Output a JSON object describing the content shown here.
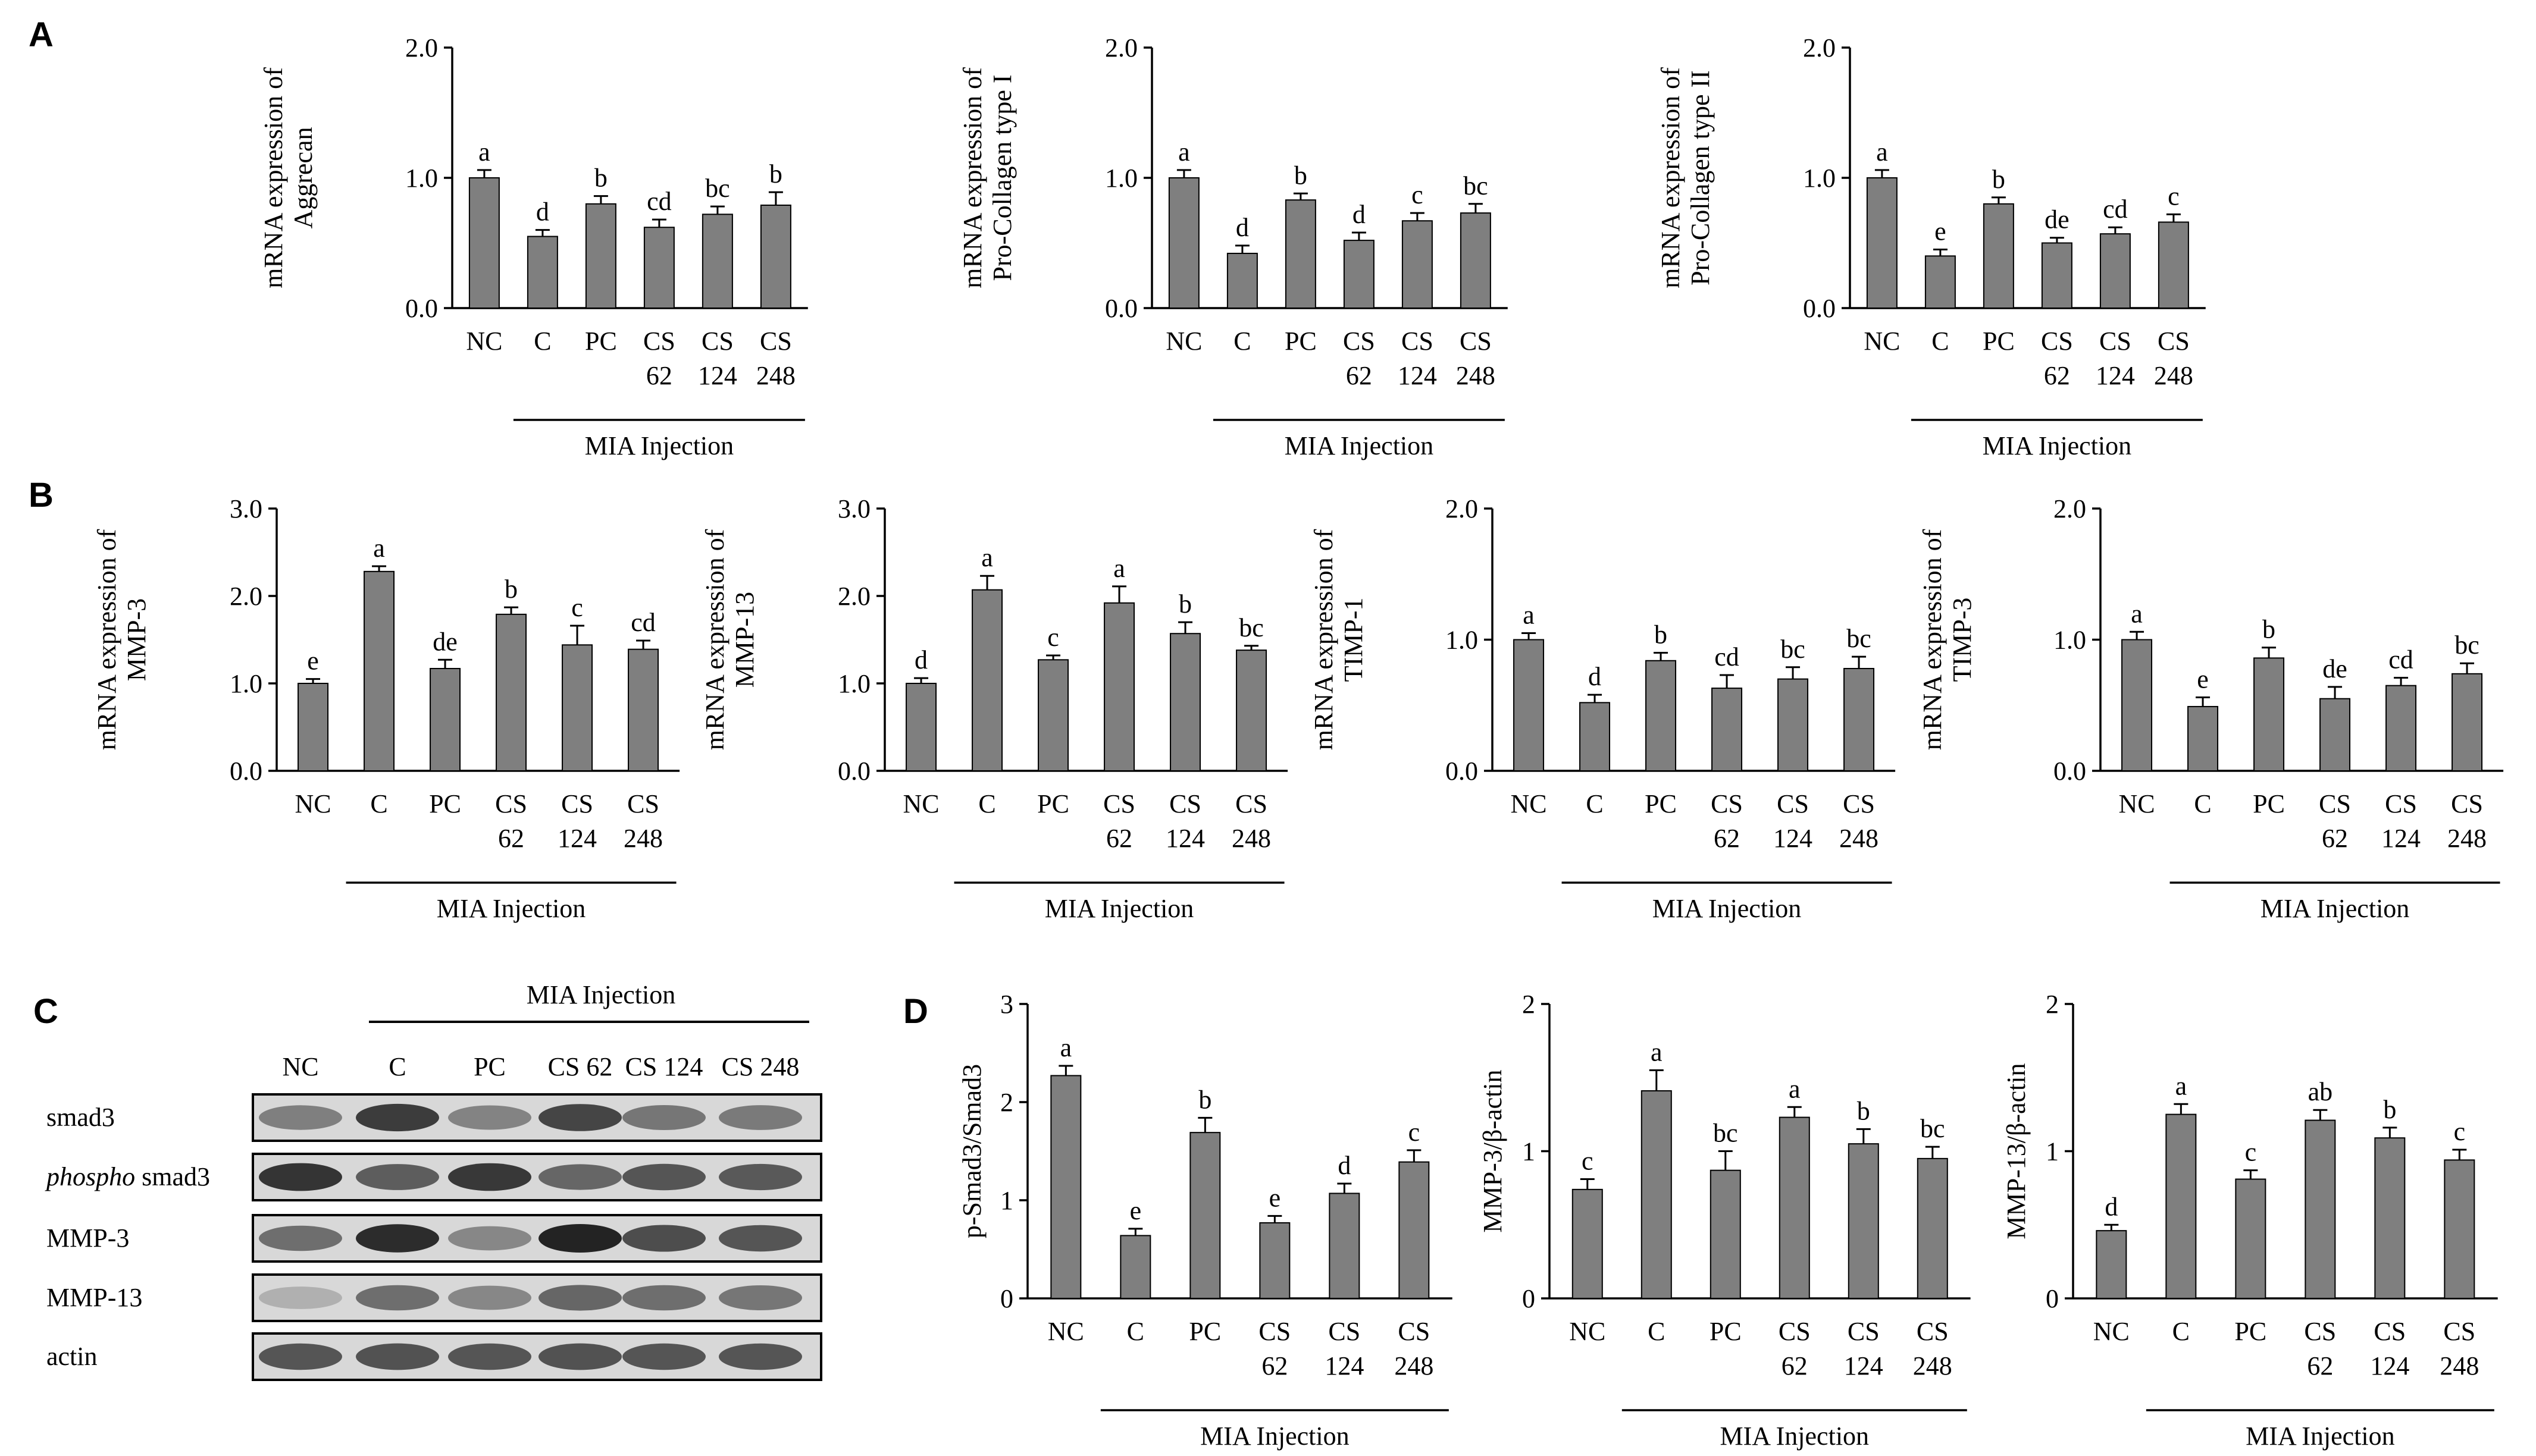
{
  "panel_labels": {
    "A": "A",
    "B": "B",
    "C": "C",
    "D": "D"
  },
  "colors": {
    "bar": "#7f7f7f",
    "axis": "#000000",
    "text": "#000000"
  },
  "chart_data": [
    {
      "id": "A1",
      "type": "bar",
      "ylabel_lines": [
        "mRNA expression of",
        "Aggrecan"
      ],
      "categories": [
        [
          "NC"
        ],
        [
          "C"
        ],
        [
          "PC"
        ],
        [
          "CS",
          "62"
        ],
        [
          "CS",
          "124"
        ],
        [
          "CS",
          "248"
        ]
      ],
      "values": [
        1.0,
        0.55,
        0.8,
        0.62,
        0.72,
        0.79
      ],
      "errors": [
        0.06,
        0.05,
        0.06,
        0.06,
        0.06,
        0.1
      ],
      "letters": [
        "a",
        "d",
        "b",
        "cd",
        "bc",
        "b"
      ],
      "ylim": [
        0,
        2.0
      ],
      "yticks": [
        "0.0",
        "1.0",
        "2.0"
      ],
      "group_label": "MIA Injection",
      "title": "",
      "xlabel": ""
    },
    {
      "id": "A2",
      "type": "bar",
      "ylabel_lines": [
        "mRNA expression of",
        "Pro-Collagen type I"
      ],
      "categories": [
        [
          "NC"
        ],
        [
          "C"
        ],
        [
          "PC"
        ],
        [
          "CS",
          "62"
        ],
        [
          "CS",
          "124"
        ],
        [
          "CS",
          "248"
        ]
      ],
      "values": [
        1.0,
        0.42,
        0.83,
        0.52,
        0.67,
        0.73
      ],
      "errors": [
        0.06,
        0.06,
        0.05,
        0.06,
        0.06,
        0.07
      ],
      "letters": [
        "a",
        "d",
        "b",
        "d",
        "c",
        "bc"
      ],
      "ylim": [
        0,
        2.0
      ],
      "yticks": [
        "0.0",
        "1.0",
        "2.0"
      ],
      "group_label": "MIA Injection",
      "title": "",
      "xlabel": ""
    },
    {
      "id": "A3",
      "type": "bar",
      "ylabel_lines": [
        "mRNA expression of",
        "Pro-Collagen type II"
      ],
      "categories": [
        [
          "NC"
        ],
        [
          "C"
        ],
        [
          "PC"
        ],
        [
          "CS",
          "62"
        ],
        [
          "CS",
          "124"
        ],
        [
          "CS",
          "248"
        ]
      ],
      "values": [
        1.0,
        0.4,
        0.8,
        0.5,
        0.57,
        0.66
      ],
      "errors": [
        0.06,
        0.05,
        0.05,
        0.04,
        0.05,
        0.06
      ],
      "letters": [
        "a",
        "e",
        "b",
        "de",
        "cd",
        "c"
      ],
      "ylim": [
        0,
        2.0
      ],
      "yticks": [
        "0.0",
        "1.0",
        "2.0"
      ],
      "group_label": "MIA Injection",
      "title": "",
      "xlabel": ""
    },
    {
      "id": "B1",
      "type": "bar",
      "ylabel_lines": [
        "mRNA expression of",
        "MMP-3"
      ],
      "categories": [
        [
          "NC"
        ],
        [
          "C"
        ],
        [
          "PC"
        ],
        [
          "CS",
          "62"
        ],
        [
          "CS",
          "124"
        ],
        [
          "CS",
          "248"
        ]
      ],
      "values": [
        1.0,
        2.28,
        1.17,
        1.79,
        1.44,
        1.39
      ],
      "errors": [
        0.05,
        0.06,
        0.1,
        0.08,
        0.22,
        0.1
      ],
      "letters": [
        "e",
        "a",
        "de",
        "b",
        "c",
        "cd"
      ],
      "ylim": [
        0,
        3.0
      ],
      "yticks": [
        "0.0",
        "1.0",
        "2.0",
        "3.0"
      ],
      "group_label": "MIA Injection",
      "title": "",
      "xlabel": ""
    },
    {
      "id": "B2",
      "type": "bar",
      "ylabel_lines": [
        "mRNA expression of",
        "MMP-13"
      ],
      "categories": [
        [
          "NC"
        ],
        [
          "C"
        ],
        [
          "PC"
        ],
        [
          "CS",
          "62"
        ],
        [
          "CS",
          "124"
        ],
        [
          "CS",
          "248"
        ]
      ],
      "values": [
        1.0,
        2.07,
        1.27,
        1.92,
        1.57,
        1.38
      ],
      "errors": [
        0.06,
        0.16,
        0.05,
        0.19,
        0.13,
        0.05
      ],
      "letters": [
        "d",
        "a",
        "c",
        "a",
        "b",
        "bc"
      ],
      "ylim": [
        0,
        3.0
      ],
      "yticks": [
        "0.0",
        "1.0",
        "2.0",
        "3.0"
      ],
      "group_label": "MIA Injection",
      "title": "",
      "xlabel": ""
    },
    {
      "id": "B3",
      "type": "bar",
      "ylabel_lines": [
        "mRNA expression of",
        "TIMP-1"
      ],
      "categories": [
        [
          "NC"
        ],
        [
          "C"
        ],
        [
          "PC"
        ],
        [
          "CS",
          "62"
        ],
        [
          "CS",
          "124"
        ],
        [
          "CS",
          "248"
        ]
      ],
      "values": [
        1.0,
        0.52,
        0.84,
        0.63,
        0.7,
        0.78
      ],
      "errors": [
        0.05,
        0.06,
        0.06,
        0.1,
        0.09,
        0.09
      ],
      "letters": [
        "a",
        "d",
        "b",
        "cd",
        "bc",
        "bc"
      ],
      "ylim": [
        0,
        2.0
      ],
      "yticks": [
        "0.0",
        "1.0",
        "2.0"
      ],
      "group_label": "MIA Injection",
      "title": "",
      "xlabel": ""
    },
    {
      "id": "B4",
      "type": "bar",
      "ylabel_lines": [
        "mRNA expression of",
        "TIMP-3"
      ],
      "categories": [
        [
          "NC"
        ],
        [
          "C"
        ],
        [
          "PC"
        ],
        [
          "CS",
          "62"
        ],
        [
          "CS",
          "124"
        ],
        [
          "CS",
          "248"
        ]
      ],
      "values": [
        1.0,
        0.49,
        0.86,
        0.55,
        0.65,
        0.74
      ],
      "errors": [
        0.06,
        0.07,
        0.08,
        0.09,
        0.06,
        0.08
      ],
      "letters": [
        "a",
        "e",
        "b",
        "de",
        "cd",
        "bc"
      ],
      "ylim": [
        0,
        2.0
      ],
      "yticks": [
        "0.0",
        "1.0",
        "2.0"
      ],
      "group_label": "MIA Injection",
      "title": "",
      "xlabel": ""
    },
    {
      "id": "D1",
      "type": "bar",
      "ylabel_lines": [
        "p-Smad3/Smad3"
      ],
      "categories": [
        [
          "NC"
        ],
        [
          "C"
        ],
        [
          "PC"
        ],
        [
          "CS",
          "62"
        ],
        [
          "CS",
          "124"
        ],
        [
          "CS",
          "248"
        ]
      ],
      "values": [
        2.27,
        0.64,
        1.69,
        0.77,
        1.07,
        1.39
      ],
      "errors": [
        0.1,
        0.07,
        0.15,
        0.07,
        0.1,
        0.12
      ],
      "letters": [
        "a",
        "e",
        "b",
        "e",
        "d",
        "c"
      ],
      "ylim": [
        0,
        3
      ],
      "yticks": [
        "0",
        "1",
        "2",
        "3"
      ],
      "group_label": "MIA Injection",
      "title": "",
      "xlabel": ""
    },
    {
      "id": "D2",
      "type": "bar",
      "ylabel_lines": [
        "MMP-3/β-actin"
      ],
      "categories": [
        [
          "NC"
        ],
        [
          "C"
        ],
        [
          "PC"
        ],
        [
          "CS",
          "62"
        ],
        [
          "CS",
          "124"
        ],
        [
          "CS",
          "248"
        ]
      ],
      "values": [
        0.74,
        1.41,
        0.87,
        1.23,
        1.05,
        0.95
      ],
      "errors": [
        0.07,
        0.14,
        0.13,
        0.07,
        0.1,
        0.08
      ],
      "letters": [
        "c",
        "a",
        "bc",
        "a",
        "b",
        "bc"
      ],
      "ylim": [
        0,
        2
      ],
      "yticks": [
        "0",
        "1",
        "2"
      ],
      "group_label": "MIA Injection",
      "title": "",
      "xlabel": ""
    },
    {
      "id": "D3",
      "type": "bar",
      "ylabel_lines": [
        "MMP-13/β-actin"
      ],
      "categories": [
        [
          "NC"
        ],
        [
          "C"
        ],
        [
          "PC"
        ],
        [
          "CS",
          "62"
        ],
        [
          "CS",
          "124"
        ],
        [
          "CS",
          "248"
        ]
      ],
      "values": [
        0.46,
        1.25,
        0.81,
        1.21,
        1.09,
        0.94
      ],
      "errors": [
        0.04,
        0.07,
        0.06,
        0.07,
        0.07,
        0.07
      ],
      "letters": [
        "d",
        "a",
        "c",
        "ab",
        "b",
        "c"
      ],
      "ylim": [
        0,
        2
      ],
      "yticks": [
        "0",
        "1",
        "2"
      ],
      "group_label": "MIA Injection",
      "title": "",
      "xlabel": ""
    }
  ],
  "western": {
    "header": "MIA Injection",
    "lanes": [
      "NC",
      "C",
      "PC",
      "CS 62",
      "CS 124",
      "CS 248"
    ],
    "rows": [
      {
        "label": "smad3",
        "intensity": [
          0.45,
          0.85,
          0.42,
          0.8,
          0.5,
          0.48
        ]
      },
      {
        "label_prefix": "phospho",
        "label": " smad3",
        "intensity": [
          0.9,
          0.65,
          0.88,
          0.6,
          0.7,
          0.68
        ]
      },
      {
        "label": "MMP-3",
        "intensity": [
          0.55,
          0.95,
          0.4,
          1.0,
          0.75,
          0.7
        ]
      },
      {
        "label": "MMP-13",
        "intensity": [
          0.15,
          0.55,
          0.4,
          0.6,
          0.55,
          0.5
        ]
      },
      {
        "label": "actin",
        "intensity": [
          0.7,
          0.72,
          0.7,
          0.72,
          0.7,
          0.7
        ]
      }
    ]
  }
}
